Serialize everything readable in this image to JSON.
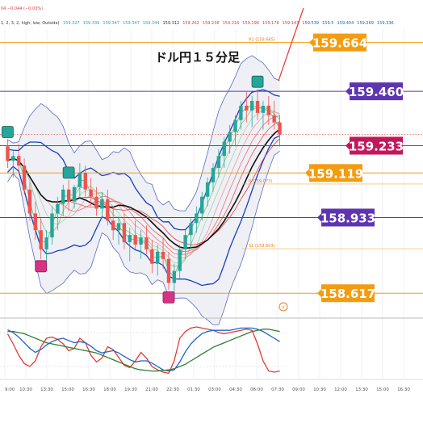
{
  "header": {
    "change_text": "04  −0.044 (−0.03%)",
    "indicator_text": "1, 2, 3, 2, high, low, Outside)",
    "indicator_values": [
      {
        "text": "159.327",
        "color": "#26a69a"
      },
      {
        "text": "159.339",
        "color": "#26a69a"
      },
      {
        "text": "159.347",
        "color": "#26a69a"
      },
      {
        "text": "159.347",
        "color": "#26a69a"
      },
      {
        "text": "159.344",
        "color": "#26a69a"
      },
      {
        "text": "159.312",
        "color": "#333333"
      },
      {
        "text": "159.262",
        "color": "#e53935"
      },
      {
        "text": "159.238",
        "color": "#e53935"
      },
      {
        "text": "159.216",
        "color": "#e53935"
      },
      {
        "text": "159.196",
        "color": "#e53935"
      },
      {
        "text": "159.178",
        "color": "#e53935"
      },
      {
        "text": "159.143",
        "color": "#e53935"
      },
      {
        "text": "159.539",
        "color": "#1565c0"
      },
      {
        "text": "159.5",
        "color": "#1565c0"
      },
      {
        "text": "159.404",
        "color": "#1565c0"
      },
      {
        "text": "159.269",
        "color": "#1565c0"
      },
      {
        "text": "159.336",
        "color": "#1565c0"
      }
    ]
  },
  "chart_title": "ドル円１５分足",
  "chart_data": {
    "type": "line",
    "instrument_note": "ドル円１５分足",
    "ylim": [
      158.52,
      159.72
    ],
    "x_ticks": [
      "9:00",
      "10:30",
      "13:30",
      "15:00",
      "16:30",
      "18:00",
      "19:30",
      "21:00",
      "22:30",
      "01:30",
      "03:00",
      "04:30",
      "06:00",
      "07:30",
      "09:00",
      "10:30",
      "12:00",
      "13:30",
      "15:00",
      "16:30"
    ],
    "price_levels": [
      {
        "value": "159.664",
        "color": "#f39c12",
        "y": 159.664
      },
      {
        "value": "159.460",
        "color": "#5e35b1",
        "y": 159.46
      },
      {
        "value": "159.233",
        "color": "#c2185b",
        "y": 159.233
      },
      {
        "value": "159.119",
        "color": "#f39c12",
        "y": 159.119
      },
      {
        "value": "158.933",
        "color": "#5e35b1",
        "y": 158.933
      },
      {
        "value": "158.617",
        "color": "#f39c12",
        "y": 158.617
      }
    ],
    "pivot_labels": [
      {
        "text": "R1 (159.665)",
        "y": 159.665
      },
      {
        "text": "P (159.073)",
        "y": 159.073
      },
      {
        "text": "S1 (158.803)",
        "y": 158.803
      }
    ],
    "candles": [
      [
        159.23,
        159.26,
        159.14,
        159.17
      ],
      [
        159.17,
        159.21,
        159.1,
        159.19
      ],
      [
        159.19,
        159.24,
        159.13,
        159.15
      ],
      [
        159.15,
        159.18,
        159.03,
        159.05
      ],
      [
        159.05,
        159.08,
        158.92,
        158.95
      ],
      [
        158.95,
        159.0,
        158.84,
        158.88
      ],
      [
        158.88,
        158.93,
        158.76,
        158.8
      ],
      [
        158.8,
        158.88,
        158.75,
        158.85
      ],
      [
        158.85,
        158.98,
        158.82,
        158.95
      ],
      [
        158.95,
        159.02,
        158.88,
        158.99
      ],
      [
        158.99,
        159.07,
        158.94,
        159.05
      ],
      [
        159.05,
        159.09,
        158.96,
        159.0
      ],
      [
        159.0,
        159.07,
        158.97,
        159.06
      ],
      [
        159.06,
        159.16,
        159.02,
        159.12
      ],
      [
        159.12,
        159.15,
        159.02,
        159.05
      ],
      [
        159.05,
        159.1,
        158.98,
        159.02
      ],
      [
        159.02,
        159.06,
        158.94,
        158.97
      ],
      [
        158.97,
        159.04,
        158.93,
        159.01
      ],
      [
        159.01,
        159.05,
        158.9,
        158.92
      ],
      [
        158.92,
        158.98,
        158.84,
        158.88
      ],
      [
        158.88,
        158.94,
        158.82,
        158.91
      ],
      [
        158.91,
        158.95,
        158.8,
        158.83
      ],
      [
        158.83,
        158.89,
        158.75,
        158.86
      ],
      [
        158.86,
        158.92,
        158.8,
        158.82
      ],
      [
        158.82,
        158.88,
        158.76,
        158.85
      ],
      [
        158.85,
        158.9,
        158.78,
        158.8
      ],
      [
        158.8,
        158.84,
        158.7,
        158.74
      ],
      [
        158.74,
        158.82,
        158.69,
        158.79
      ],
      [
        158.79,
        158.85,
        158.72,
        158.76
      ],
      [
        158.76,
        158.79,
        158.63,
        158.66
      ],
      [
        158.66,
        158.74,
        158.6,
        158.71
      ],
      [
        158.71,
        158.82,
        158.68,
        158.8
      ],
      [
        158.8,
        158.88,
        158.76,
        158.86
      ],
      [
        158.86,
        158.93,
        158.8,
        158.91
      ],
      [
        158.91,
        158.98,
        158.87,
        158.95
      ],
      [
        158.95,
        159.04,
        158.92,
        159.02
      ],
      [
        159.02,
        159.1,
        158.98,
        159.08
      ],
      [
        159.08,
        159.16,
        159.04,
        159.14
      ],
      [
        159.14,
        159.22,
        159.1,
        159.19
      ],
      [
        159.19,
        159.27,
        159.14,
        159.25
      ],
      [
        159.25,
        159.32,
        159.2,
        159.29
      ],
      [
        159.29,
        159.36,
        159.23,
        159.34
      ],
      [
        159.34,
        159.42,
        159.3,
        159.4
      ],
      [
        159.4,
        159.46,
        159.33,
        159.38
      ],
      [
        159.38,
        159.44,
        159.31,
        159.42
      ],
      [
        159.42,
        159.47,
        159.34,
        159.37
      ],
      [
        159.37,
        159.42,
        159.3,
        159.4
      ],
      [
        159.4,
        159.44,
        159.32,
        159.36
      ],
      [
        159.36,
        159.42,
        159.3,
        159.33
      ],
      [
        159.33,
        159.36,
        159.23,
        159.28
      ]
    ],
    "signals": [
      {
        "type": "top",
        "index": 0
      },
      {
        "type": "top",
        "index": 11
      },
      {
        "type": "bottom",
        "index": 6
      },
      {
        "type": "bottom",
        "index": 29
      },
      {
        "type": "top",
        "index": 45
      }
    ],
    "oscillator": {
      "ylim": [
        0,
        100
      ],
      "series": [
        {
          "color": "#e53935",
          "values": [
            78,
            60,
            40,
            25,
            20,
            30,
            55,
            70,
            72,
            68,
            60,
            48,
            52,
            70,
            62,
            40,
            28,
            35,
            55,
            50,
            36,
            22,
            18,
            30,
            45,
            35,
            20,
            14,
            10,
            8,
            30,
            70,
            82,
            88,
            90,
            88,
            86,
            84,
            80,
            78,
            80,
            82,
            84,
            86,
            84,
            60,
            30,
            12,
            10,
            12
          ]
        },
        {
          "color": "#1e63c9",
          "values": [
            85,
            80,
            72,
            62,
            52,
            45,
            50,
            58,
            64,
            68,
            70,
            66,
            62,
            64,
            62,
            56,
            48,
            44,
            46,
            48,
            44,
            38,
            32,
            28,
            30,
            30,
            26,
            20,
            14,
            12,
            14,
            28,
            46,
            60,
            70,
            78,
            82,
            84,
            84,
            84,
            84,
            86,
            88,
            88,
            88,
            86,
            82,
            76,
            70,
            64
          ]
        },
        {
          "color": "#2e7d32",
          "values": [
            82,
            82,
            80,
            78,
            74,
            70,
            66,
            62,
            60,
            58,
            56,
            54,
            52,
            50,
            48,
            46,
            44,
            40,
            36,
            32,
            28,
            24,
            20,
            16,
            14,
            13,
            12,
            12,
            13,
            14,
            16,
            20,
            24,
            30,
            36,
            42,
            48,
            54,
            58,
            62,
            66,
            70,
            74,
            78,
            82,
            84,
            86,
            86,
            84,
            82
          ]
        }
      ]
    }
  }
}
